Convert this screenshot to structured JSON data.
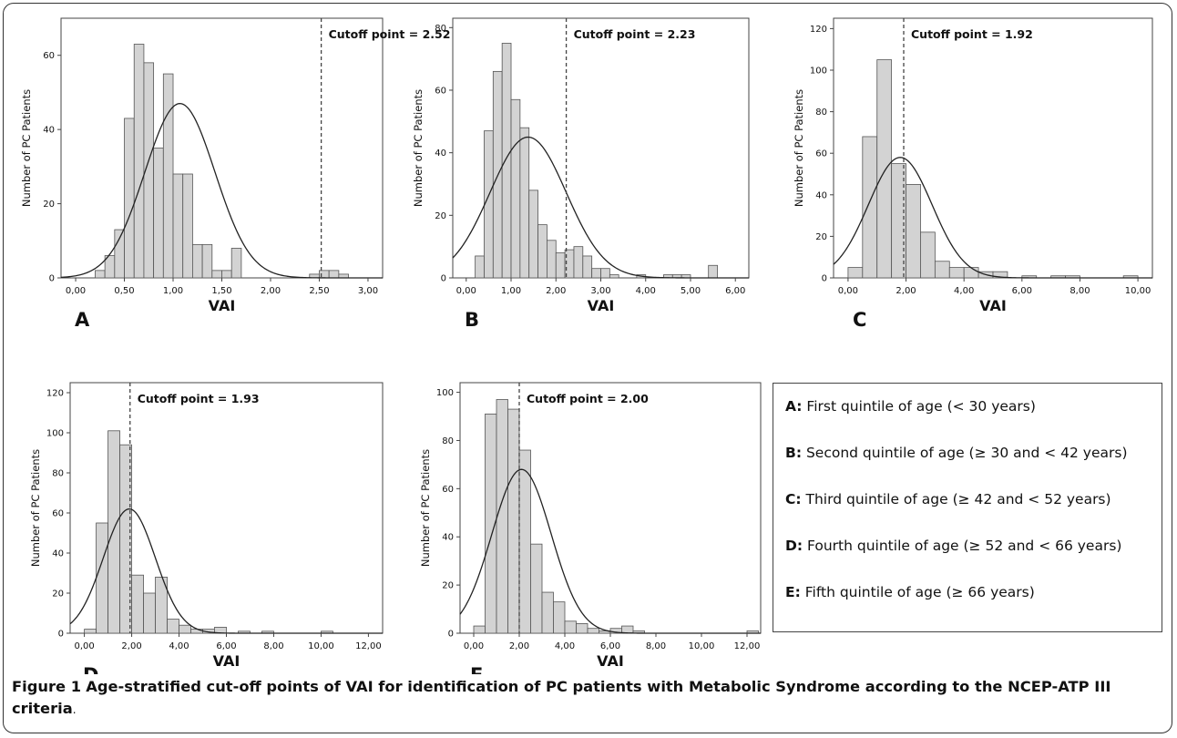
{
  "figure": {
    "caption_label": "Figure 1",
    "caption_text": "Age-stratified cut-off points of VAI for identification of PC patients with Metabolic Syndrome according to the NCEP-ATP III criteria",
    "caption_end": "."
  },
  "legend": {
    "items": [
      {
        "key": "A:",
        "text": "First quintile of age (< 30 years)"
      },
      {
        "key": "B:",
        "text": "Second quintile of age (≥ 30 and < 42 years)"
      },
      {
        "key": "C:",
        "text": "Third quintile of age (≥ 42 and < 52 years)"
      },
      {
        "key": "D:",
        "text": "Fourth quintile of age (≥ 52 and < 66 years)"
      },
      {
        "key": "E:",
        "text": "Fifth quintile of age (≥ 66 years)"
      }
    ]
  },
  "colors": {
    "bar_fill": "#d3d3d3",
    "bar_stroke": "#555555",
    "curve": "#222222",
    "cutoff_line": "#444444"
  },
  "chart_data": [
    {
      "panel": "A",
      "type": "bar",
      "xlabel": "VAI",
      "ylabel": "Number of PC Patients",
      "xlim": [
        -0.15,
        3.15
      ],
      "ylim": [
        0,
        70
      ],
      "xticks": [
        0,
        0.5,
        1,
        1.5,
        2,
        2.5,
        3
      ],
      "xtick_labels": [
        "0,00",
        "0,50",
        "1,00",
        "1,50",
        "2,00",
        "2,50",
        "3,00"
      ],
      "yticks": [
        0,
        20,
        40,
        60
      ],
      "ytick_labels": [
        "0",
        "20",
        "40",
        "60"
      ],
      "bin_width": 0.1,
      "bins": [
        [
          0.25,
          2
        ],
        [
          0.35,
          6
        ],
        [
          0.45,
          13
        ],
        [
          0.55,
          43
        ],
        [
          0.65,
          63
        ],
        [
          0.75,
          58
        ],
        [
          0.85,
          35
        ],
        [
          0.95,
          55
        ],
        [
          1.05,
          28
        ],
        [
          1.15,
          28
        ],
        [
          1.25,
          9
        ],
        [
          1.35,
          9
        ],
        [
          1.45,
          2
        ],
        [
          1.55,
          2
        ],
        [
          1.65,
          8
        ],
        [
          1.75,
          0
        ],
        [
          1.85,
          0
        ],
        [
          1.95,
          0
        ],
        [
          2.05,
          0
        ],
        [
          2.15,
          0
        ],
        [
          2.25,
          0
        ],
        [
          2.35,
          0
        ],
        [
          2.45,
          1
        ],
        [
          2.55,
          2
        ],
        [
          2.65,
          2
        ],
        [
          2.75,
          1
        ]
      ],
      "normal_curve": {
        "mean": 1.07,
        "sd": 0.36,
        "peak": 47
      },
      "cutoff": 2.52,
      "cutoff_label": "Cutoff point = 2.52"
    },
    {
      "panel": "B",
      "type": "bar",
      "xlabel": "VAI",
      "ylabel": "Number of PC Patients",
      "xlim": [
        -0.3,
        6.3
      ],
      "ylim": [
        0,
        83
      ],
      "xticks": [
        0,
        1,
        2,
        3,
        4,
        5,
        6
      ],
      "xtick_labels": [
        "0,00",
        "1,00",
        "2,00",
        "3,00",
        "4,00",
        "5,00",
        "6,00"
      ],
      "yticks": [
        0,
        20,
        40,
        60,
        80
      ],
      "ytick_labels": [
        "0",
        "20",
        "40",
        "60",
        "80"
      ],
      "bin_width": 0.2,
      "bins": [
        [
          0.3,
          7
        ],
        [
          0.5,
          47
        ],
        [
          0.7,
          66
        ],
        [
          0.9,
          75
        ],
        [
          1.1,
          57
        ],
        [
          1.3,
          48
        ],
        [
          1.5,
          28
        ],
        [
          1.7,
          17
        ],
        [
          1.9,
          12
        ],
        [
          2.1,
          8
        ],
        [
          2.3,
          9
        ],
        [
          2.5,
          10
        ],
        [
          2.7,
          7
        ],
        [
          2.9,
          3
        ],
        [
          3.1,
          3
        ],
        [
          3.3,
          1
        ],
        [
          3.5,
          0
        ],
        [
          3.7,
          0
        ],
        [
          3.9,
          1
        ],
        [
          4.1,
          0
        ],
        [
          4.3,
          0
        ],
        [
          4.5,
          1
        ],
        [
          4.7,
          1
        ],
        [
          4.9,
          1
        ],
        [
          5.1,
          0
        ],
        [
          5.3,
          0
        ],
        [
          5.5,
          4
        ]
      ],
      "normal_curve": {
        "mean": 1.38,
        "sd": 0.85,
        "peak": 45
      },
      "cutoff": 2.23,
      "cutoff_label": "Cutoff point = 2.23"
    },
    {
      "panel": "C",
      "type": "bar",
      "xlabel": "VAI",
      "ylabel": "Number of PC Patients",
      "xlim": [
        -0.5,
        10.5
      ],
      "ylim": [
        0,
        125
      ],
      "xticks": [
        0,
        2,
        4,
        6,
        8,
        10
      ],
      "xtick_labels": [
        "0,00",
        "2,00",
        "4,00",
        "6,00",
        "8,00",
        "10,00"
      ],
      "yticks": [
        0,
        20,
        40,
        60,
        80,
        100,
        120
      ],
      "ytick_labels": [
        "0",
        "20",
        "40",
        "60",
        "80",
        "100",
        "120"
      ],
      "bin_width": 0.5,
      "bins": [
        [
          0.25,
          5
        ],
        [
          0.75,
          68
        ],
        [
          1.25,
          105
        ],
        [
          1.75,
          55
        ],
        [
          2.25,
          45
        ],
        [
          2.75,
          22
        ],
        [
          3.25,
          8
        ],
        [
          3.75,
          5
        ],
        [
          4.25,
          5
        ],
        [
          4.75,
          3
        ],
        [
          5.25,
          3
        ],
        [
          5.75,
          0
        ],
        [
          6.25,
          1
        ],
        [
          6.75,
          0
        ],
        [
          7.25,
          1
        ],
        [
          7.75,
          1
        ],
        [
          8.25,
          0
        ],
        [
          8.75,
          0
        ],
        [
          9.25,
          0
        ],
        [
          9.75,
          1
        ]
      ],
      "normal_curve": {
        "mean": 1.8,
        "sd": 1.1,
        "peak": 58
      },
      "cutoff": 1.92,
      "cutoff_label": "Cutoff point = 1.92"
    },
    {
      "panel": "D",
      "type": "bar",
      "xlabel": "VAI",
      "ylabel": "Number of PC Patients",
      "xlim": [
        -0.6,
        12.6
      ],
      "ylim": [
        0,
        125
      ],
      "xticks": [
        0,
        2,
        4,
        6,
        8,
        10,
        12
      ],
      "xtick_labels": [
        "0,00",
        "2,00",
        "4,00",
        "6,00",
        "8,00",
        "10,00",
        "12,00"
      ],
      "yticks": [
        0,
        20,
        40,
        60,
        80,
        100,
        120
      ],
      "ytick_labels": [
        "0",
        "20",
        "40",
        "60",
        "80",
        "100",
        "120"
      ],
      "bin_width": 0.5,
      "bins": [
        [
          0.25,
          2
        ],
        [
          0.75,
          55
        ],
        [
          1.25,
          101
        ],
        [
          1.75,
          94
        ],
        [
          2.25,
          29
        ],
        [
          2.75,
          20
        ],
        [
          3.25,
          28
        ],
        [
          3.75,
          7
        ],
        [
          4.25,
          4
        ],
        [
          4.75,
          2
        ],
        [
          5.25,
          2
        ],
        [
          5.75,
          3
        ],
        [
          6.25,
          0
        ],
        [
          6.75,
          1
        ],
        [
          7.25,
          0
        ],
        [
          7.75,
          1
        ],
        [
          8.25,
          0
        ],
        [
          8.75,
          0
        ],
        [
          9.25,
          0
        ],
        [
          9.75,
          0
        ],
        [
          10.25,
          1
        ]
      ],
      "normal_curve": {
        "mean": 1.9,
        "sd": 1.1,
        "peak": 62
      },
      "cutoff": 1.93,
      "cutoff_label": "Cutoff point = 1.93"
    },
    {
      "panel": "E",
      "type": "bar",
      "xlabel": "VAI",
      "ylabel": "Number of PC Patients",
      "xlim": [
        -0.6,
        12.6
      ],
      "ylim": [
        0,
        104
      ],
      "xticks": [
        0,
        2,
        4,
        6,
        8,
        10,
        12
      ],
      "xtick_labels": [
        "0,00",
        "2,00",
        "4,00",
        "6,00",
        "8,00",
        "10,00",
        "12,00"
      ],
      "yticks": [
        0,
        20,
        40,
        60,
        80,
        100
      ],
      "ytick_labels": [
        "0",
        "20",
        "40",
        "60",
        "80",
        "100"
      ],
      "bin_width": 0.5,
      "bins": [
        [
          0.25,
          3
        ],
        [
          0.75,
          91
        ],
        [
          1.25,
          97
        ],
        [
          1.75,
          93
        ],
        [
          2.25,
          76
        ],
        [
          2.75,
          37
        ],
        [
          3.25,
          17
        ],
        [
          3.75,
          13
        ],
        [
          4.25,
          5
        ],
        [
          4.75,
          4
        ],
        [
          5.25,
          2
        ],
        [
          5.75,
          1
        ],
        [
          6.25,
          2
        ],
        [
          6.75,
          3
        ],
        [
          7.25,
          1
        ],
        [
          7.75,
          0
        ],
        [
          8.25,
          0
        ],
        [
          8.75,
          0
        ],
        [
          9.25,
          0
        ],
        [
          9.75,
          0
        ],
        [
          10.25,
          0
        ],
        [
          10.75,
          0
        ],
        [
          11.25,
          0
        ],
        [
          11.75,
          0
        ],
        [
          12.25,
          1
        ]
      ],
      "normal_curve": {
        "mean": 2.1,
        "sd": 1.3,
        "peak": 68
      },
      "cutoff": 2.0,
      "cutoff_label": "Cutoff point = 2.00"
    }
  ]
}
